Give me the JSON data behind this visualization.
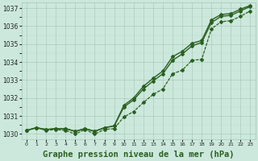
{
  "title": "Graphe pression niveau de la mer (hPa)",
  "x_values": [
    0,
    1,
    2,
    3,
    4,
    5,
    6,
    7,
    8,
    9,
    10,
    11,
    12,
    13,
    14,
    15,
    16,
    17,
    18,
    19,
    20,
    21,
    22,
    23
  ],
  "line_straight": [
    1030.2,
    1030.35,
    1030.25,
    1030.3,
    1030.3,
    1030.15,
    1030.3,
    1030.15,
    1030.35,
    1030.45,
    1031.5,
    1031.9,
    1032.5,
    1032.95,
    1033.35,
    1034.1,
    1034.45,
    1034.9,
    1035.1,
    1036.2,
    1036.55,
    1036.6,
    1036.85,
    1037.1
  ],
  "line_jagged": [
    1030.2,
    1030.35,
    1030.2,
    1030.25,
    1030.2,
    1030.0,
    1030.25,
    1030.0,
    1030.25,
    1030.3,
    1030.95,
    1031.25,
    1031.75,
    1032.2,
    1032.5,
    1033.35,
    1033.55,
    1034.1,
    1034.15,
    1035.85,
    1036.25,
    1036.3,
    1036.55,
    1036.85
  ],
  "line_ref": [
    1030.2,
    1030.35,
    1030.25,
    1030.3,
    1030.3,
    1030.15,
    1030.3,
    1030.15,
    1030.35,
    1030.45,
    1031.6,
    1032.0,
    1032.65,
    1033.1,
    1033.5,
    1034.3,
    1034.6,
    1035.05,
    1035.2,
    1036.35,
    1036.65,
    1036.7,
    1036.95,
    1037.15
  ],
  "ylim": [
    1029.7,
    1037.3
  ],
  "yticks": [
    1030,
    1031,
    1032,
    1033,
    1034,
    1035,
    1036,
    1037
  ],
  "bg_color": "#cce8dc",
  "grid_major_color": "#aaccbb",
  "grid_minor_color": "#bbddcc",
  "line_color": "#2a6020",
  "title_fontsize": 7.5
}
